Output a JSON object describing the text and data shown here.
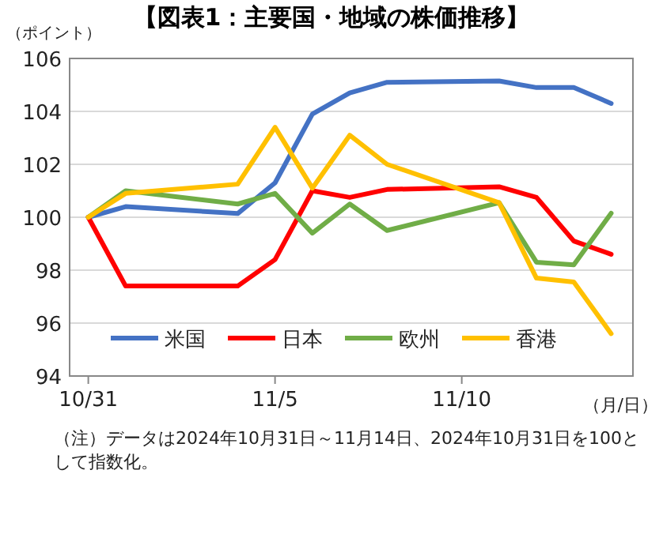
{
  "chart_data": {
    "type": "line",
    "title": "【図表1：主要国・地域の株価推移】",
    "ylabel": "（ポイント）",
    "xlabel": "（月/日）",
    "x": [
      "2024-10-31",
      "2024-11-01",
      "2024-11-04",
      "2024-11-05",
      "2024-11-06",
      "2024-11-07",
      "2024-11-08",
      "2024-11-11",
      "2024-11-12",
      "2024-11-13",
      "2024-11-14"
    ],
    "xlim": [
      "2024-10-30T12:00",
      "2024-11-14T14:00"
    ],
    "xticks": [
      {
        "value": "2024-10-31",
        "label": "10/31"
      },
      {
        "value": "2024-11-05",
        "label": "11/5"
      },
      {
        "value": "2024-11-10",
        "label": "11/10"
      }
    ],
    "ylim": [
      94,
      106
    ],
    "yticks": [
      94,
      96,
      98,
      100,
      102,
      104,
      106
    ],
    "grid": "y",
    "legend": "bottom",
    "marker": "none",
    "line_style": "solid",
    "series": [
      {
        "name": "米国",
        "color": "#4472c4",
        "values": [
          100,
          100.4,
          100.14,
          101.3,
          103.9,
          104.7,
          105.1,
          105.15,
          104.9,
          104.9,
          104.3
        ]
      },
      {
        "name": "日本",
        "color": "#ff0000",
        "values": [
          100,
          97.4,
          97.4,
          98.4,
          101.0,
          100.75,
          101.05,
          101.15,
          100.75,
          99.1,
          98.6
        ]
      },
      {
        "name": "欧州",
        "color": "#70ad47",
        "values": [
          100,
          101.0,
          100.5,
          100.9,
          99.4,
          100.5,
          99.5,
          100.55,
          98.3,
          98.2,
          100.15
        ]
      },
      {
        "name": "香港",
        "color": "#ffc000",
        "values": [
          100,
          100.9,
          101.25,
          103.4,
          101.1,
          103.1,
          102.0,
          100.55,
          97.7,
          97.55,
          95.6
        ]
      }
    ],
    "annotations": [
      "（注）データは2024年10月31日～11月14日、2024年10月31日を100として指数化。"
    ]
  }
}
